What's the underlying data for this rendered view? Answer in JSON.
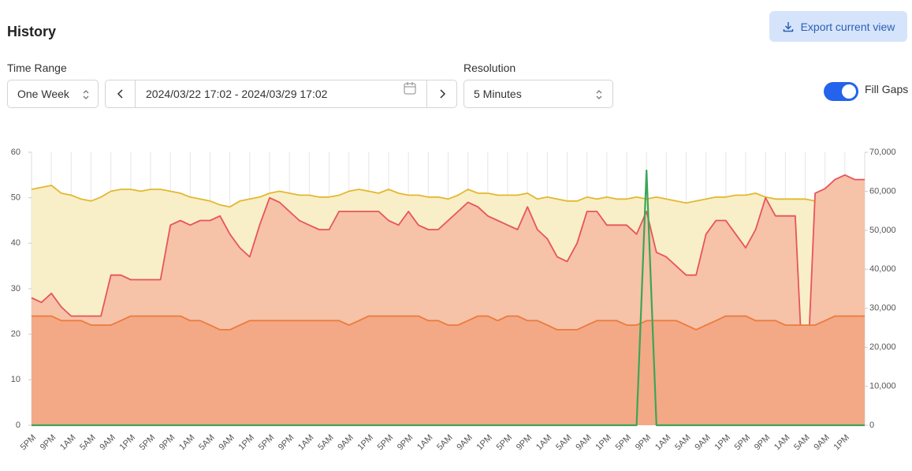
{
  "header": {
    "title": "History",
    "export_button": "Export current view"
  },
  "controls": {
    "time_range_label": "Time Range",
    "time_range": "One Week",
    "date_range": "2024/03/22 17:02 - 2024/03/29 17:02",
    "resolution_label": "Resolution",
    "resolution": "5 Minutes",
    "fill_gaps": "Fill Gaps"
  },
  "chart_data": {
    "type": "area",
    "categories": [
      "5PM",
      null,
      "9PM",
      null,
      "1AM",
      null,
      "5AM",
      null,
      "9AM",
      null,
      "1PM",
      null,
      "5PM",
      null,
      "9PM",
      null,
      "1AM",
      null,
      "5AM",
      null,
      "9AM",
      null,
      "1PM",
      null,
      "5PM",
      null,
      "9PM",
      null,
      "1AM",
      null,
      "5AM",
      null,
      "9AM",
      null,
      "1PM",
      null,
      "5PM",
      null,
      "9PM",
      null,
      "1AM",
      null,
      "5AM",
      null,
      "9AM",
      null,
      "1PM",
      null,
      "5PM",
      null,
      "9PM",
      null,
      "1AM",
      null,
      "5AM",
      null,
      "9AM",
      null,
      "1PM",
      null,
      "5PM",
      null,
      "9PM",
      null,
      "1AM",
      null,
      "5AM",
      null,
      "9AM",
      null,
      "1PM",
      null,
      "5PM",
      null,
      "9PM",
      null,
      "1AM",
      null,
      "5AM",
      null,
      "9AM",
      null,
      "1PM",
      null,
      null
    ],
    "ylim": [
      0,
      60
    ],
    "yticks": [
      0,
      10,
      20,
      30,
      40,
      50,
      60
    ],
    "y2lim": [
      0,
      70000
    ],
    "y2ticks": [
      0,
      {
        "value": 10000,
        "label": "10,000"
      },
      {
        "value": 20000,
        "label": "20,000"
      },
      {
        "value": 30000,
        "label": "30,000"
      },
      {
        "value": 40000,
        "label": "40,000"
      },
      {
        "value": 50000,
        "label": "50,000"
      },
      {
        "value": 60000,
        "label": "60,000"
      },
      {
        "value": 70000,
        "label": "70,000"
      }
    ],
    "grid": "x",
    "series": [
      {
        "color": "#e3b82f",
        "fill": "#f8efc8",
        "axis": "y2",
        "values": [
          60500,
          61000,
          61500,
          59500,
          59000,
          58000,
          57500,
          58500,
          60000,
          60500,
          60500,
          60000,
          60500,
          60500,
          60000,
          59500,
          58500,
          58000,
          57500,
          56500,
          56000,
          57500,
          58000,
          58500,
          59500,
          60000,
          59500,
          59000,
          59000,
          58500,
          58500,
          59000,
          60000,
          60500,
          60000,
          59500,
          60500,
          59500,
          59000,
          59000,
          58500,
          58500,
          58000,
          59000,
          60500,
          59500,
          59500,
          59000,
          59000,
          59000,
          59500,
          58000,
          58500,
          58000,
          57500,
          57500,
          58500,
          58000,
          58500,
          58000,
          58000,
          58500,
          58000,
          58500,
          58000,
          57500,
          57000,
          57500,
          58000,
          58500,
          58500,
          59000,
          59000,
          59500,
          58500,
          58000,
          58000,
          58000,
          58000,
          57500,
          58500,
          59000,
          59500,
          60000,
          59500
        ]
      },
      {
        "color": "#e8545a",
        "fill": "#f6c2a8",
        "values": [
          28,
          27,
          29,
          26,
          24,
          24,
          24,
          24,
          33,
          33,
          32,
          32,
          32,
          32,
          44,
          45,
          44,
          45,
          45,
          46,
          42,
          39,
          37,
          44,
          50,
          49,
          47,
          45,
          44,
          43,
          43,
          47,
          47,
          47,
          47,
          47,
          45,
          44,
          47,
          44,
          43,
          43,
          45,
          47,
          49,
          48,
          46,
          45,
          44,
          43,
          48,
          43,
          41,
          37,
          36,
          40,
          47,
          47,
          44,
          44,
          44,
          42,
          47,
          38,
          37,
          35,
          33,
          33,
          42,
          45,
          45,
          42,
          39,
          43,
          50,
          46,
          46,
          46,
          0,
          51,
          52,
          54,
          55,
          54,
          54
        ]
      },
      {
        "color": "#ec7a3d",
        "fill": "#f3a985",
        "values": [
          24,
          24,
          24,
          23,
          23,
          23,
          22,
          22,
          22,
          23,
          24,
          24,
          24,
          24,
          24,
          24,
          23,
          23,
          22,
          21,
          21,
          22,
          23,
          23,
          23,
          23,
          23,
          23,
          23,
          23,
          23,
          23,
          22,
          23,
          24,
          24,
          24,
          24,
          24,
          24,
          23,
          23,
          22,
          22,
          23,
          24,
          24,
          23,
          24,
          24,
          23,
          23,
          22,
          21,
          21,
          21,
          22,
          23,
          23,
          23,
          22,
          22,
          23,
          23,
          23,
          23,
          22,
          21,
          22,
          23,
          24,
          24,
          24,
          23,
          23,
          23,
          22,
          22,
          22,
          22,
          23,
          24,
          24,
          24,
          24
        ]
      },
      {
        "color": "#3aa657",
        "values": [
          0,
          0,
          0,
          0,
          0,
          0,
          0,
          0,
          0,
          0,
          0,
          0,
          0,
          0,
          0,
          0,
          0,
          0,
          0,
          0,
          0,
          0,
          0,
          0,
          0,
          0,
          0,
          0,
          0,
          0,
          0,
          0,
          0,
          0,
          0,
          0,
          0,
          0,
          0,
          0,
          0,
          0,
          0,
          0,
          0,
          0,
          0,
          0,
          0,
          0,
          0,
          0,
          0,
          0,
          0,
          0,
          0,
          0,
          0,
          0,
          0,
          0,
          56,
          0,
          0,
          0,
          0,
          0,
          0,
          0,
          0,
          0,
          0,
          0,
          0,
          0,
          0,
          0,
          0,
          0,
          0,
          0,
          0,
          0,
          0
        ]
      }
    ]
  }
}
